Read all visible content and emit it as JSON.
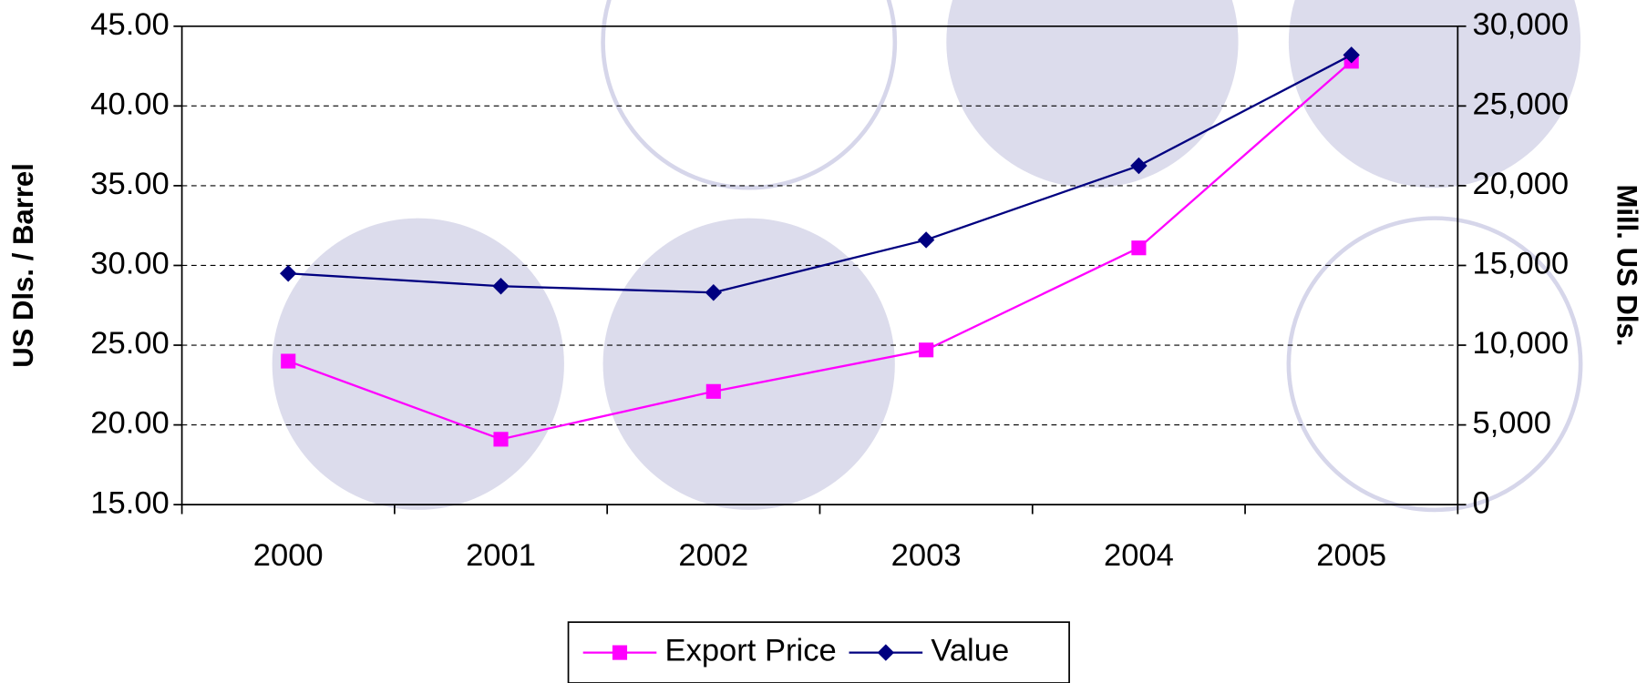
{
  "chart_data": {
    "type": "line",
    "y_label": "US Dls. / Barrel",
    "y2_label": "Mill. US Dls.",
    "categories": [
      "2000",
      "2001",
      "2002",
      "2003",
      "2004",
      "2005"
    ],
    "series": [
      {
        "name": "Export Price",
        "color": "#ff00ff",
        "marker": "square",
        "values": [
          24.0,
          19.1,
          22.1,
          24.7,
          31.1,
          42.8
        ]
      },
      {
        "name": "Value",
        "color": "#000080",
        "marker": "diamond",
        "axis": "y2",
        "values": [
          14500,
          13700,
          13300,
          16600,
          21250,
          28200
        ]
      }
    ],
    "ylim": [
      15,
      45
    ],
    "yticks": [
      {
        "value": 15,
        "label": "15.00"
      },
      {
        "value": 20,
        "label": "20.00"
      },
      {
        "value": 25,
        "label": "25.00"
      },
      {
        "value": 30,
        "label": "30.00"
      },
      {
        "value": 35,
        "label": "35.00"
      },
      {
        "value": 40,
        "label": "40.00"
      },
      {
        "value": 45,
        "label": "45.00"
      }
    ],
    "y2lim": [
      0,
      30000
    ],
    "y2ticks": [
      0,
      {
        "value": 5000,
        "label": "5,000"
      },
      {
        "value": 10000,
        "label": "10,000"
      },
      {
        "value": 15000,
        "label": "15,000"
      },
      {
        "value": 20000,
        "label": "20,000"
      },
      {
        "value": 25000,
        "label": "25,000"
      },
      {
        "value": 30000,
        "label": "30,000"
      }
    ],
    "grid": true,
    "legend": "bottom"
  }
}
